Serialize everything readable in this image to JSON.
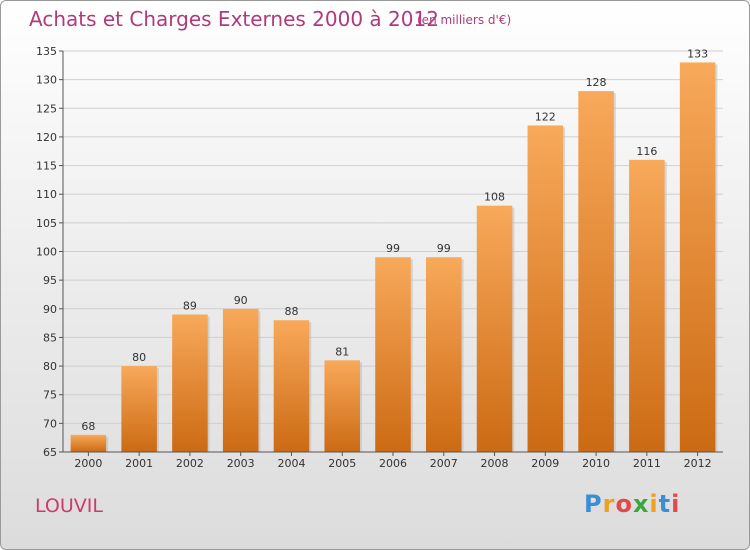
{
  "chart": {
    "title": "Achats et Charges Externes 2000 à 2012",
    "unit_note": "(en milliers d'€)",
    "location": "LOUVIL"
  },
  "logo": {
    "letters": [
      "P",
      "r",
      "o",
      "x",
      "i",
      "t",
      "i"
    ],
    "colors": [
      "#3a8ed6",
      "#f0a020",
      "#e54848",
      "#3aa83a",
      "#f0a020",
      "#3a8ed6",
      "#e54848"
    ]
  },
  "chart_data": {
    "type": "bar",
    "categories": [
      "2000",
      "2001",
      "2002",
      "2003",
      "2004",
      "2005",
      "2006",
      "2007",
      "2008",
      "2009",
      "2010",
      "2011",
      "2012"
    ],
    "values": [
      68,
      80,
      89,
      90,
      88,
      81,
      99,
      99,
      108,
      122,
      128,
      116,
      133
    ],
    "title": "Achats et Charges Externes 2000 à 2012",
    "xlabel": "",
    "ylabel": "",
    "ylim": [
      65,
      135
    ],
    "yticks": [
      65,
      70,
      75,
      80,
      85,
      90,
      95,
      100,
      105,
      110,
      115,
      120,
      125,
      130,
      135
    ],
    "grid": true,
    "bar_color": "#f08c2a"
  }
}
